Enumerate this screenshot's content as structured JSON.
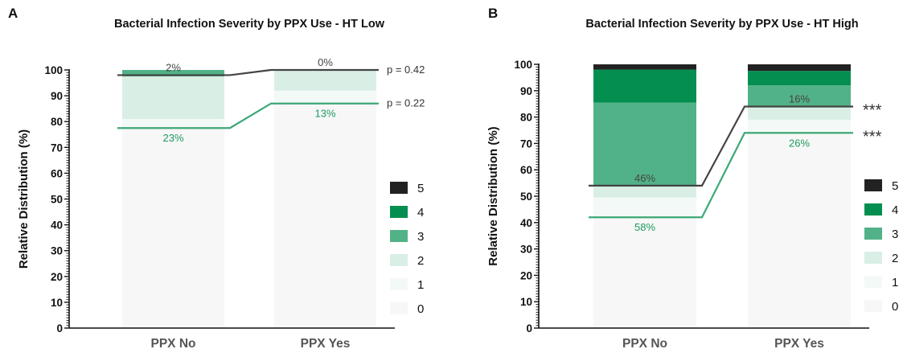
{
  "figure": {
    "colors": {
      "0": "#f7f7f7",
      "1": "#f3f9f6",
      "2": "#d9efe5",
      "3": "#52b287",
      "4": "#048f50",
      "5": "#222222",
      "line_dark": "#444444",
      "line_green": "#3ca877",
      "ann_green": "#1e9a5f",
      "ann_dark": "#444444"
    }
  },
  "chart_data": [
    {
      "panel": "A",
      "type": "bar",
      "stacked": true,
      "title": "Bacterial Infection Severity by PPX Use - HT Low",
      "xlabel": "",
      "ylabel": "Relative Distribution (%)",
      "ylim": [
        0,
        100
      ],
      "yticks": [
        "0",
        "10",
        "20",
        "30",
        "40",
        "50",
        "60",
        "70",
        "80",
        "90",
        "100"
      ],
      "categories": [
        "PPX No",
        "PPX Yes"
      ],
      "legend_position": "right",
      "legend": [
        "5",
        "4",
        "3",
        "2",
        "1",
        "0"
      ],
      "series": [
        {
          "name": "0",
          "values": [
            77.5,
            87
          ]
        },
        {
          "name": "1",
          "values": [
            3.5,
            5
          ]
        },
        {
          "name": "2",
          "values": [
            16.5,
            8
          ]
        },
        {
          "name": "3",
          "values": [
            2.5,
            0
          ]
        },
        {
          "name": "4",
          "values": [
            0,
            0
          ]
        },
        {
          "name": "5",
          "values": [
            0,
            0
          ]
        }
      ],
      "lines": [
        {
          "tone": "dark",
          "values": [
            98,
            100
          ],
          "labels": [
            "2%",
            "0%"
          ],
          "right_label": "p = 0.42"
        },
        {
          "tone": "green",
          "values": [
            77.5,
            87
          ],
          "labels": [
            "23%",
            "13%"
          ],
          "right_label": "p = 0.22"
        }
      ]
    },
    {
      "panel": "B",
      "type": "bar",
      "stacked": true,
      "title": "Bacterial Infection Severity by PPX Use - HT High",
      "xlabel": "",
      "ylabel": "Relative Distribution (%)",
      "ylim": [
        0,
        100
      ],
      "yticks": [
        "0",
        "10",
        "20",
        "30",
        "40",
        "50",
        "60",
        "70",
        "80",
        "90",
        "100"
      ],
      "categories": [
        "PPX No",
        "PPX Yes"
      ],
      "legend_position": "right",
      "legend": [
        "5",
        "4",
        "3",
        "2",
        "1",
        "0"
      ],
      "series": [
        {
          "name": "0",
          "values": [
            42,
            74
          ]
        },
        {
          "name": "1",
          "values": [
            7.5,
            5
          ]
        },
        {
          "name": "2",
          "values": [
            4.5,
            5
          ]
        },
        {
          "name": "3",
          "values": [
            31.5,
            8
          ]
        },
        {
          "name": "4",
          "values": [
            12.5,
            5.5
          ]
        },
        {
          "name": "5",
          "values": [
            2,
            2.5
          ]
        }
      ],
      "lines": [
        {
          "tone": "dark",
          "values": [
            54,
            84
          ],
          "labels": [
            "46%",
            "16%"
          ],
          "right_label": "***"
        },
        {
          "tone": "green",
          "values": [
            42,
            74
          ],
          "labels": [
            "58%",
            "26%"
          ],
          "right_label": "***"
        }
      ]
    }
  ]
}
